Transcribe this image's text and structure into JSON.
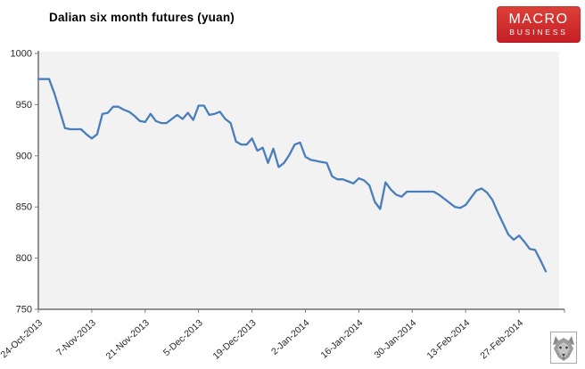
{
  "title": "Dalian six month futures (yuan)",
  "logo": {
    "line1": "MACRO",
    "line2": "BUSINESS",
    "bg_top": "#dd4038",
    "bg_bottom": "#c41f26"
  },
  "watermark_icon": "wolf-icon",
  "chart_data": {
    "type": "line",
    "title": "Dalian six month futures (yuan)",
    "series_name": "Dalian six month futures",
    "line_color": "#4a7ebb",
    "plot_bg": "#f2f2f2",
    "axis_color": "#7f7f7f",
    "label_color": "#262626",
    "grid": false,
    "legend": "none",
    "ylim": [
      750,
      1000
    ],
    "yticks": [
      1000,
      950,
      900,
      850,
      800,
      750
    ],
    "x_tick_labels": [
      "24-Oct-2013",
      "7-Nov-2013",
      "21-Nov-2013",
      "5-Dec-2013",
      "19-Dec-2013",
      "2-Jan-2014",
      "16-Jan-2014",
      "30-Jan-2014",
      "13-Feb-2014",
      "27-Feb-2014"
    ],
    "x_tick_indices": [
      0,
      10,
      20,
      30,
      40,
      50,
      60,
      70,
      80,
      90
    ],
    "values": [
      975,
      975,
      975,
      961,
      944,
      927,
      926,
      926,
      926,
      921,
      917,
      921,
      941,
      942,
      948,
      948,
      945,
      943,
      939,
      934,
      933,
      941,
      934,
      932,
      932,
      936,
      940,
      936,
      942,
      935,
      949,
      949,
      940,
      941,
      943,
      936,
      932,
      914,
      911,
      911,
      917,
      905,
      908,
      893,
      907,
      889,
      893,
      901,
      911,
      913,
      899,
      896,
      895,
      894,
      893,
      880,
      877,
      877,
      875,
      873,
      878,
      876,
      871,
      855,
      848,
      874,
      867,
      862,
      860,
      865,
      865,
      865,
      865,
      865,
      865,
      862,
      858,
      854,
      850,
      849,
      852,
      859,
      866,
      868,
      864,
      857,
      845,
      834,
      823,
      818,
      822,
      816,
      809,
      808,
      798,
      787
    ]
  }
}
